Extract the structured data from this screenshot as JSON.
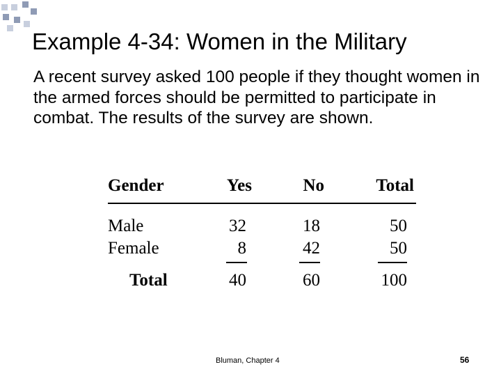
{
  "slide": {
    "title": "Example 4-34: Women in the Military",
    "body": "A recent survey asked 100 people if they thought women in the armed forces should be permitted to participate in combat. The results of the survey are shown.",
    "footer": "Bluman, Chapter 4",
    "slide_number": "56"
  },
  "table": {
    "headers": [
      "Gender",
      "Yes",
      "No",
      "Total"
    ],
    "rows": [
      [
        "Male",
        "32",
        "18",
        "50"
      ],
      [
        "Female",
        "8",
        "42",
        "50"
      ]
    ],
    "total_row": [
      "Total",
      "40",
      "60",
      "100"
    ]
  },
  "colors": {
    "decor_square": "#8f9bb5",
    "decor_square_light": "#c8cfde",
    "text": "#000000"
  }
}
